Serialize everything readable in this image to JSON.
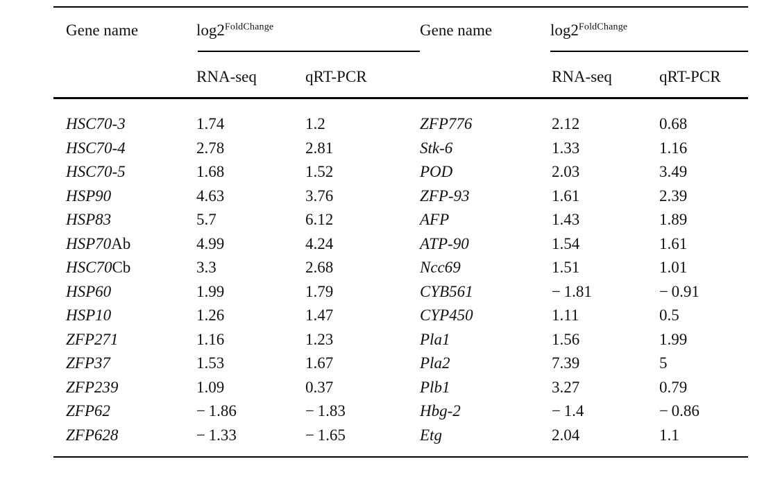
{
  "table": {
    "header": {
      "gene_name": "Gene name",
      "log2_base": "log2",
      "log2_sup": "FoldChange",
      "rna_seq": "RNA-seq",
      "qrt_pcr": "qRT-PCR"
    },
    "left_rows": [
      {
        "gene": "HSC70-3",
        "gene_suffix": "",
        "rna_seq": "1.74",
        "qrt_pcr": "1.2"
      },
      {
        "gene": "HSC70-4",
        "gene_suffix": "",
        "rna_seq": "2.78",
        "qrt_pcr": "2.81"
      },
      {
        "gene": "HSC70-5",
        "gene_suffix": "",
        "rna_seq": "1.68",
        "qrt_pcr": "1.52"
      },
      {
        "gene": "HSP90",
        "gene_suffix": "",
        "rna_seq": "4.63",
        "qrt_pcr": "3.76"
      },
      {
        "gene": "HSP83",
        "gene_suffix": "",
        "rna_seq": "5.7",
        "qrt_pcr": "6.12"
      },
      {
        "gene": "HSP70",
        "gene_suffix": "Ab",
        "rna_seq": "4.99",
        "qrt_pcr": "4.24"
      },
      {
        "gene": "HSC70",
        "gene_suffix": "Cb",
        "rna_seq": "3.3",
        "qrt_pcr": "2.68"
      },
      {
        "gene": "HSP60",
        "gene_suffix": "",
        "rna_seq": "1.99",
        "qrt_pcr": "1.79"
      },
      {
        "gene": "HSP10",
        "gene_suffix": "",
        "rna_seq": "1.26",
        "qrt_pcr": "1.47"
      },
      {
        "gene": "ZFP271",
        "gene_suffix": "",
        "rna_seq": "1.16",
        "qrt_pcr": "1.23"
      },
      {
        "gene": "ZFP37",
        "gene_suffix": "",
        "rna_seq": "1.53",
        "qrt_pcr": "1.67"
      },
      {
        "gene": "ZFP239",
        "gene_suffix": "",
        "rna_seq": "1.09",
        "qrt_pcr": "0.37"
      },
      {
        "gene": "ZFP62",
        "gene_suffix": "",
        "rna_seq": "− 1.86",
        "qrt_pcr": "− 1.83"
      },
      {
        "gene": "ZFP628",
        "gene_suffix": "",
        "rna_seq": "− 1.33",
        "qrt_pcr": "− 1.65"
      }
    ],
    "right_rows": [
      {
        "gene": "ZFP776",
        "gene_suffix": "",
        "rna_seq": "2.12",
        "qrt_pcr": "0.68"
      },
      {
        "gene": "Stk-6",
        "gene_suffix": "",
        "rna_seq": "1.33",
        "qrt_pcr": "1.16"
      },
      {
        "gene": "POD",
        "gene_suffix": "",
        "rna_seq": "2.03",
        "qrt_pcr": "3.49"
      },
      {
        "gene": "ZFP-93",
        "gene_suffix": "",
        "rna_seq": "1.61",
        "qrt_pcr": "2.39"
      },
      {
        "gene": "AFP",
        "gene_suffix": "",
        "rna_seq": "1.43",
        "qrt_pcr": "1.89"
      },
      {
        "gene": "ATP-90",
        "gene_suffix": "",
        "rna_seq": "1.54",
        "qrt_pcr": "1.61"
      },
      {
        "gene": "Ncc69",
        "gene_suffix": "",
        "rna_seq": "1.51",
        "qrt_pcr": "1.01"
      },
      {
        "gene": "CYB561",
        "gene_suffix": "",
        "rna_seq": "− 1.81",
        "qrt_pcr": "− 0.91"
      },
      {
        "gene": "CYP450",
        "gene_suffix": "",
        "rna_seq": "1.11",
        "qrt_pcr": "0.5"
      },
      {
        "gene": "Pla1",
        "gene_suffix": "",
        "rna_seq": "1.56",
        "qrt_pcr": "1.99"
      },
      {
        "gene": "Pla2",
        "gene_suffix": "",
        "rna_seq": "7.39",
        "qrt_pcr": "5"
      },
      {
        "gene": "Plb1",
        "gene_suffix": "",
        "rna_seq": "3.27",
        "qrt_pcr": "0.79"
      },
      {
        "gene": "Hbg-2",
        "gene_suffix": "",
        "rna_seq": "− 1.4",
        "qrt_pcr": "− 0.86"
      },
      {
        "gene": "Etg",
        "gene_suffix": "",
        "rna_seq": "2.04",
        "qrt_pcr": "1.1"
      }
    ]
  }
}
